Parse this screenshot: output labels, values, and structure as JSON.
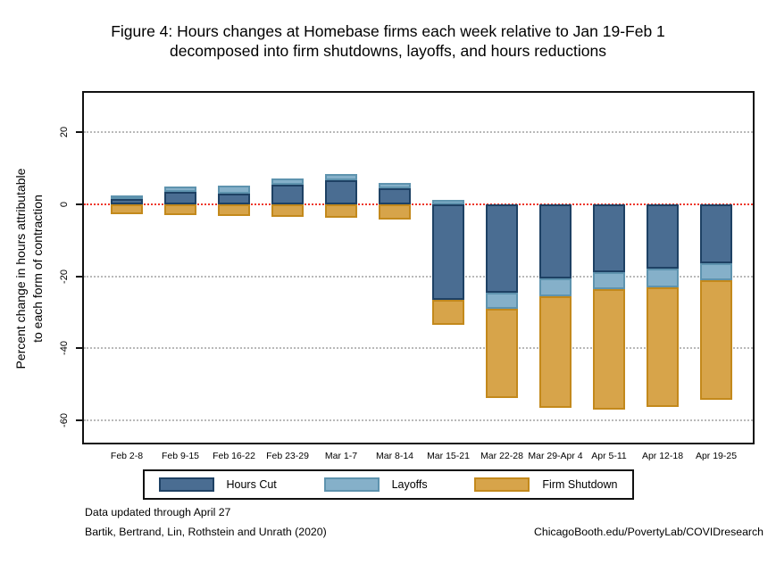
{
  "title": {
    "line1": "Figure 4: Hours changes at Homebase firms each week relative to Jan 19-Feb 1",
    "line2": "decomposed into firm shutdowns, layoffs, and hours reductions"
  },
  "y_axis": {
    "label_line1": "Percent change in hours attributable",
    "label_line2": "to each form of contraction",
    "ticks": [
      20,
      0,
      -20,
      -40,
      -60
    ]
  },
  "legend": [
    {
      "key": "hours_cut",
      "label": "Hours Cut"
    },
    {
      "key": "layoffs",
      "label": "Layoffs"
    },
    {
      "key": "firm_shutdown",
      "label": "Firm Shutdown"
    }
  ],
  "footer": {
    "line1": "Data updated through April 27",
    "line2": "Bartik, Bertrand, Lin, Rothstein and Unrath (2020)",
    "right": "ChicagoBooth.edu/PovertyLab/COVIDresearch"
  },
  "colors": {
    "hours_cut_fill": "#4a6d92",
    "hours_cut_border": "#1e4164",
    "layoffs_fill": "#85b0c9",
    "layoffs_border": "#5e93ae",
    "firm_shutdown_fill": "#d7a44a",
    "firm_shutdown_border": "#c3891c",
    "zero_line": "#ee372a",
    "gridline": "#b9b9b9"
  },
  "chart_data": {
    "type": "bar",
    "stacked": true,
    "title": "Figure 4: Hours changes at Homebase firms each week relative to Jan 19-Feb 1 decomposed into firm shutdowns, layoffs, and hours reductions",
    "ylabel": "Percent change in hours attributable to each form of contraction",
    "xlabel": "",
    "categories": [
      "Feb 2-8",
      "Feb 9-15",
      "Feb 16-22",
      "Feb 23-29",
      "Mar 1-7",
      "Mar 8-14",
      "Mar 15-21",
      "Mar 22-28",
      "Mar 29-Apr 4",
      "Apr 5-11",
      "Apr 12-18",
      "Apr 19-25"
    ],
    "series": [
      {
        "name": "Hours Cut",
        "key": "hours_cut",
        "values": [
          1.3,
          3.4,
          3.0,
          5.3,
          6.5,
          4.4,
          -26.5,
          -24.5,
          -20.5,
          -19.0,
          -18.0,
          -16.5
        ]
      },
      {
        "name": "Layoffs",
        "key": "layoffs",
        "values": [
          1.0,
          1.4,
          2.2,
          1.8,
          1.8,
          1.5,
          1.2,
          -4.5,
          -5.0,
          -4.7,
          -5.0,
          -4.5
        ]
      },
      {
        "name": "Firm Shutdown",
        "key": "firm_shutdown",
        "values": [
          -2.7,
          -3.0,
          -3.2,
          -3.6,
          -3.9,
          -4.3,
          -7.0,
          -24.8,
          -31.0,
          -33.3,
          -33.3,
          -33.4
        ]
      }
    ],
    "stacking_note": "Positive values stack upward from zero, negative values stack downward from zero, in series order",
    "ylim": [
      -66.9,
      30.6
    ],
    "yticks": [
      20,
      0,
      -20,
      -40,
      -60
    ],
    "grid": "dotted horizontal gridlines; zero line dotted red",
    "legend_position": "bottom boxed"
  }
}
